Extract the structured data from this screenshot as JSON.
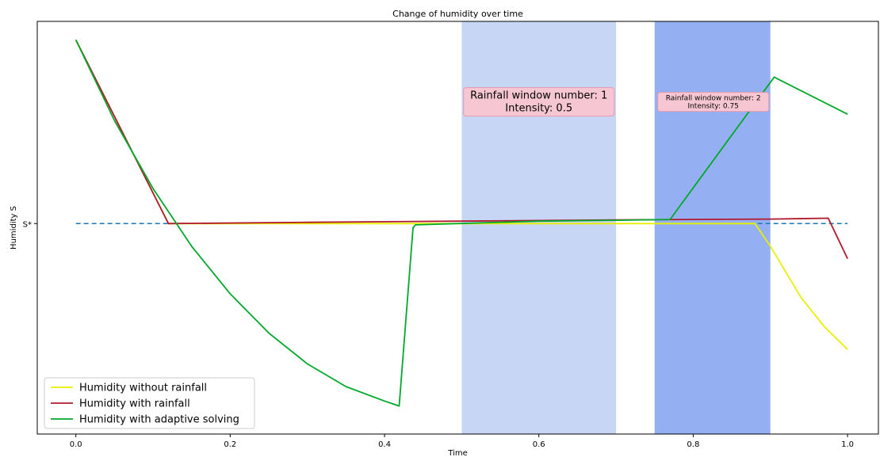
{
  "chart_data": {
    "type": "line",
    "title": "Change of humidity over time",
    "xlabel": "Time",
    "ylabel": "Humidity S",
    "xlim": [
      -0.05,
      1.04
    ],
    "ylim": [
      0.0,
      1.0
    ],
    "x_ticks": [
      0.0,
      0.2,
      0.4,
      0.6,
      0.8,
      1.0
    ],
    "x_tick_labels": [
      "0.0",
      "0.2",
      "0.4",
      "0.6",
      "0.8",
      "1.0"
    ],
    "y_ticks": [
      0.51
    ],
    "y_tick_labels": [
      "S*"
    ],
    "grid": false,
    "legend_position": "lower left",
    "reference_line": {
      "y": 0.51,
      "style": "dashed",
      "color": "#1f77b4"
    },
    "shaded_regions": [
      {
        "x0": 0.5,
        "x1": 0.7,
        "color": "#c8d6f6",
        "label": "Rainfall window number: 1",
        "intensity_label": "Intensity: 0.5",
        "label_x": 0.6,
        "label_y": 0.805,
        "label_size": "large"
      },
      {
        "x0": 0.75,
        "x1": 0.9,
        "color": "#94b0f2",
        "label": "Rainfall window number: 2",
        "intensity_label": "Intensity: 0.75",
        "label_x": 0.826,
        "label_y": 0.805,
        "label_size": "small"
      }
    ],
    "series": [
      {
        "name": "Humidity without rainfall",
        "color": "#e8f000",
        "x": [
          0.0,
          0.12,
          0.3,
          0.5,
          0.7,
          0.88,
          0.9,
          0.94,
          0.97,
          1.0
        ],
        "y": [
          0.955,
          0.51,
          0.51,
          0.51,
          0.51,
          0.51,
          0.455,
          0.33,
          0.26,
          0.205
        ]
      },
      {
        "name": "Humidity with rainfall",
        "color": "#b0182e",
        "x": [
          0.0,
          0.12,
          0.3,
          0.5,
          0.7,
          0.9,
          0.975,
          1.0
        ],
        "y": [
          0.955,
          0.51,
          0.513,
          0.516,
          0.519,
          0.521,
          0.523,
          0.425
        ]
      },
      {
        "name": "Humidity with adaptive solving",
        "color": "#00a82b",
        "x": [
          0.0,
          0.05,
          0.1,
          0.15,
          0.2,
          0.25,
          0.3,
          0.35,
          0.4,
          0.419,
          0.437,
          0.44,
          0.6,
          0.7,
          0.77,
          0.905,
          0.91,
          1.0
        ],
        "y": [
          0.955,
          0.76,
          0.595,
          0.455,
          0.34,
          0.245,
          0.17,
          0.115,
          0.08,
          0.068,
          0.5,
          0.507,
          0.516,
          0.518,
          0.52,
          0.865,
          0.86,
          0.775
        ]
      }
    ]
  }
}
